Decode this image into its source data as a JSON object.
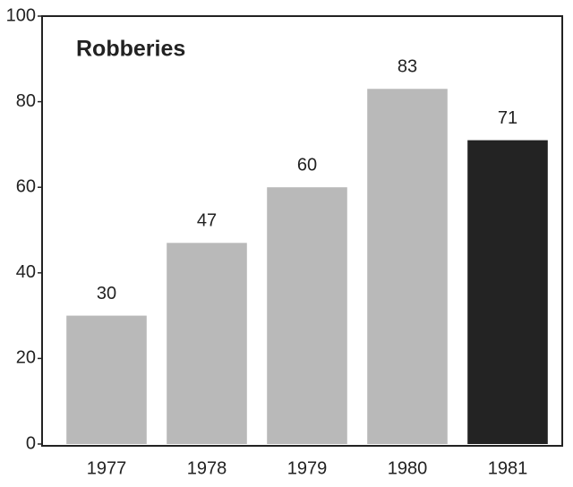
{
  "chart_data": {
    "type": "bar",
    "title": "Robberies",
    "categories": [
      "1977",
      "1978",
      "1979",
      "1980",
      "1981"
    ],
    "values": [
      30,
      47,
      60,
      83,
      71
    ],
    "colors": [
      "#b9b9b9",
      "#b9b9b9",
      "#b9b9b9",
      "#b9b9b9",
      "#232323"
    ],
    "ylim": [
      0,
      100
    ],
    "yticks": [
      0,
      20,
      40,
      60,
      80,
      100
    ],
    "grid": false
  }
}
